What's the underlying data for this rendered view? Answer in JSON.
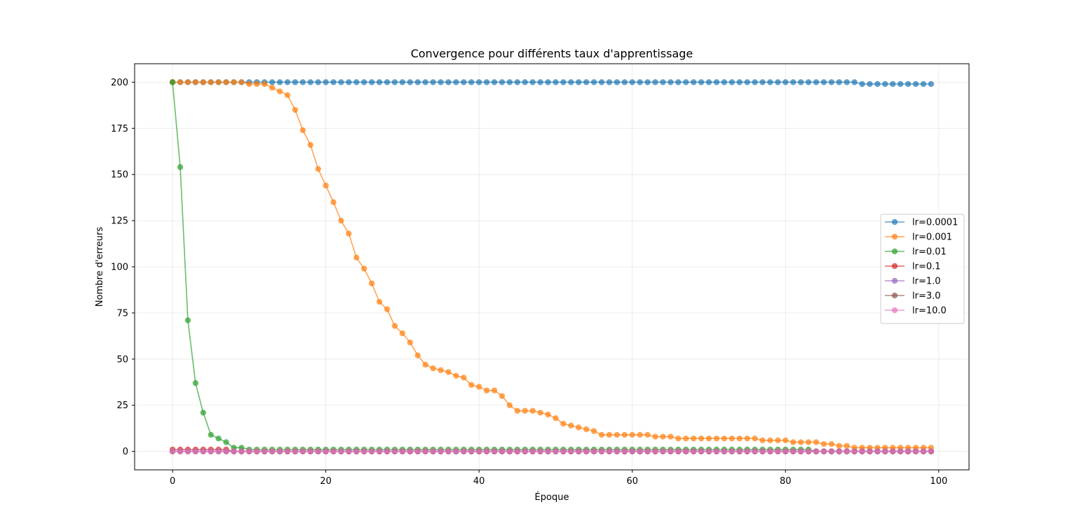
{
  "chart_data": {
    "type": "line",
    "title": "Convergence pour différents taux d'apprentissage",
    "xlabel": "Époque",
    "ylabel": "Nombre d'erreurs",
    "xlim": [
      -4.95,
      103.95
    ],
    "ylim": [
      -10,
      210
    ],
    "xticks": [
      0,
      20,
      40,
      60,
      80,
      100
    ],
    "yticks": [
      0,
      25,
      50,
      75,
      100,
      125,
      150,
      175,
      200
    ],
    "grid": true,
    "legend_position": "center-right",
    "marker": "circle",
    "alpha": 0.7,
    "series": [
      {
        "name": "lr=0.0001",
        "color": "#1f77b4",
        "values": [
          200,
          200,
          200,
          200,
          200,
          200,
          200,
          200,
          200,
          200,
          200,
          200,
          200,
          200,
          200,
          200,
          200,
          200,
          200,
          200,
          200,
          200,
          200,
          200,
          200,
          200,
          200,
          200,
          200,
          200,
          200,
          200,
          200,
          200,
          200,
          200,
          200,
          200,
          200,
          200,
          200,
          200,
          200,
          200,
          200,
          200,
          200,
          200,
          200,
          200,
          200,
          200,
          200,
          200,
          200,
          200,
          200,
          200,
          200,
          200,
          200,
          200,
          200,
          200,
          200,
          200,
          200,
          200,
          200,
          200,
          200,
          200,
          200,
          200,
          200,
          200,
          200,
          200,
          200,
          200,
          200,
          200,
          200,
          200,
          200,
          200,
          200,
          200,
          200,
          200,
          199,
          199,
          199,
          199,
          199,
          199,
          199,
          199,
          199,
          199
        ]
      },
      {
        "name": "lr=0.001",
        "color": "#ff7f0e",
        "values": [
          200,
          200,
          200,
          200,
          200,
          200,
          200,
          200,
          200,
          200,
          199,
          199,
          199,
          197,
          195,
          193,
          185,
          174,
          166,
          153,
          144,
          135,
          125,
          118,
          105,
          99,
          91,
          81,
          77,
          68,
          64,
          59,
          52,
          47,
          45,
          44,
          43,
          41,
          40,
          36,
          35,
          33,
          33,
          30,
          25,
          22,
          22,
          22,
          21,
          20,
          18,
          15,
          14,
          13,
          12,
          11,
          9,
          9,
          9,
          9,
          9,
          9,
          9,
          8,
          8,
          8,
          7,
          7,
          7,
          7,
          7,
          7,
          7,
          7,
          7,
          7,
          7,
          6,
          6,
          6,
          6,
          5,
          5,
          5,
          5,
          4,
          4,
          3,
          3,
          2,
          2,
          2,
          2,
          2,
          2,
          2,
          2,
          2,
          2,
          2
        ]
      },
      {
        "name": "lr=0.01",
        "color": "#2ca02c",
        "values": [
          200,
          154,
          71,
          37,
          21,
          9,
          7,
          5,
          2,
          2,
          1,
          1,
          1,
          1,
          1,
          1,
          1,
          1,
          1,
          1,
          1,
          1,
          1,
          1,
          1,
          1,
          1,
          1,
          1,
          1,
          1,
          1,
          1,
          1,
          1,
          1,
          1,
          1,
          1,
          1,
          1,
          1,
          1,
          1,
          1,
          1,
          1,
          1,
          1,
          1,
          1,
          1,
          1,
          1,
          1,
          1,
          1,
          1,
          1,
          1,
          1,
          1,
          1,
          1,
          1,
          1,
          1,
          1,
          1,
          1,
          1,
          1,
          1,
          1,
          1,
          1,
          1,
          1,
          1,
          1,
          1,
          1,
          1,
          1,
          0,
          0,
          0,
          0,
          0,
          0,
          0,
          0,
          0,
          0,
          0,
          0,
          0,
          0,
          0,
          0
        ]
      },
      {
        "name": "lr=0.1",
        "color": "#d62728",
        "values": [
          1,
          1,
          1,
          1,
          1,
          1,
          1,
          1,
          0,
          0,
          0,
          0,
          0,
          0,
          0,
          0,
          0,
          0,
          0,
          0,
          0,
          0,
          0,
          0,
          0,
          0,
          0,
          0,
          0,
          0,
          0,
          0,
          0,
          0,
          0,
          0,
          0,
          0,
          0,
          0,
          0,
          0,
          0,
          0,
          0,
          0,
          0,
          0,
          0,
          0,
          0,
          0,
          0,
          0,
          0,
          0,
          0,
          0,
          0,
          0,
          0,
          0,
          0,
          0,
          0,
          0,
          0,
          0,
          0,
          0,
          0,
          0,
          0,
          0,
          0,
          0,
          0,
          0,
          0,
          0,
          0,
          0,
          0,
          0,
          0,
          0,
          0,
          0,
          0,
          0,
          0,
          0,
          0,
          0,
          0,
          0,
          0,
          0,
          0,
          0
        ]
      },
      {
        "name": "lr=1.0",
        "color": "#9467bd",
        "values": [
          0,
          0,
          0,
          0,
          0,
          0,
          0,
          0,
          0,
          0,
          0,
          0,
          0,
          0,
          0,
          0,
          0,
          0,
          0,
          0,
          0,
          0,
          0,
          0,
          0,
          0,
          0,
          0,
          0,
          0,
          0,
          0,
          0,
          0,
          0,
          0,
          0,
          0,
          0,
          0,
          0,
          0,
          0,
          0,
          0,
          0,
          0,
          0,
          0,
          0,
          0,
          0,
          0,
          0,
          0,
          0,
          0,
          0,
          0,
          0,
          0,
          0,
          0,
          0,
          0,
          0,
          0,
          0,
          0,
          0,
          0,
          0,
          0,
          0,
          0,
          0,
          0,
          0,
          0,
          0,
          0,
          0,
          0,
          0,
          0,
          0,
          0,
          0,
          0,
          0,
          0,
          0,
          0,
          0,
          0,
          0,
          0,
          0,
          0,
          0
        ]
      },
      {
        "name": "lr=3.0",
        "color": "#8c564b",
        "values": [
          0,
          0,
          0,
          0,
          0,
          0,
          0,
          0,
          0,
          0,
          0,
          0,
          0,
          0,
          0,
          0,
          0,
          0,
          0,
          0,
          0,
          0,
          0,
          0,
          0,
          0,
          0,
          0,
          0,
          0,
          0,
          0,
          0,
          0,
          0,
          0,
          0,
          0,
          0,
          0,
          0,
          0,
          0,
          0,
          0,
          0,
          0,
          0,
          0,
          0,
          0,
          0,
          0,
          0,
          0,
          0,
          0,
          0,
          0,
          0,
          0,
          0,
          0,
          0,
          0,
          0,
          0,
          0,
          0,
          0,
          0,
          0,
          0,
          0,
          0,
          0,
          0,
          0,
          0,
          0,
          0,
          0,
          0,
          0,
          0,
          0,
          0,
          0,
          0,
          0,
          0,
          0,
          0,
          0,
          0,
          0,
          0,
          0,
          0,
          0
        ]
      },
      {
        "name": "lr=10.0",
        "color": "#e377c2",
        "values": [
          0,
          0,
          0,
          0,
          0,
          0,
          0,
          0,
          0,
          0,
          0,
          0,
          0,
          0,
          0,
          0,
          0,
          0,
          0,
          0,
          0,
          0,
          0,
          0,
          0,
          0,
          0,
          0,
          0,
          0,
          0,
          0,
          0,
          0,
          0,
          0,
          0,
          0,
          0,
          0,
          0,
          0,
          0,
          0,
          0,
          0,
          0,
          0,
          0,
          0,
          0,
          0,
          0,
          0,
          0,
          0,
          0,
          0,
          0,
          0,
          0,
          0,
          0,
          0,
          0,
          0,
          0,
          0,
          0,
          0,
          0,
          0,
          0,
          0,
          0,
          0,
          0,
          0,
          0,
          0,
          0,
          0,
          0,
          0,
          0,
          0,
          0,
          0,
          0,
          0,
          0,
          0,
          0,
          0,
          0,
          0,
          0,
          0,
          0,
          0
        ]
      }
    ]
  }
}
